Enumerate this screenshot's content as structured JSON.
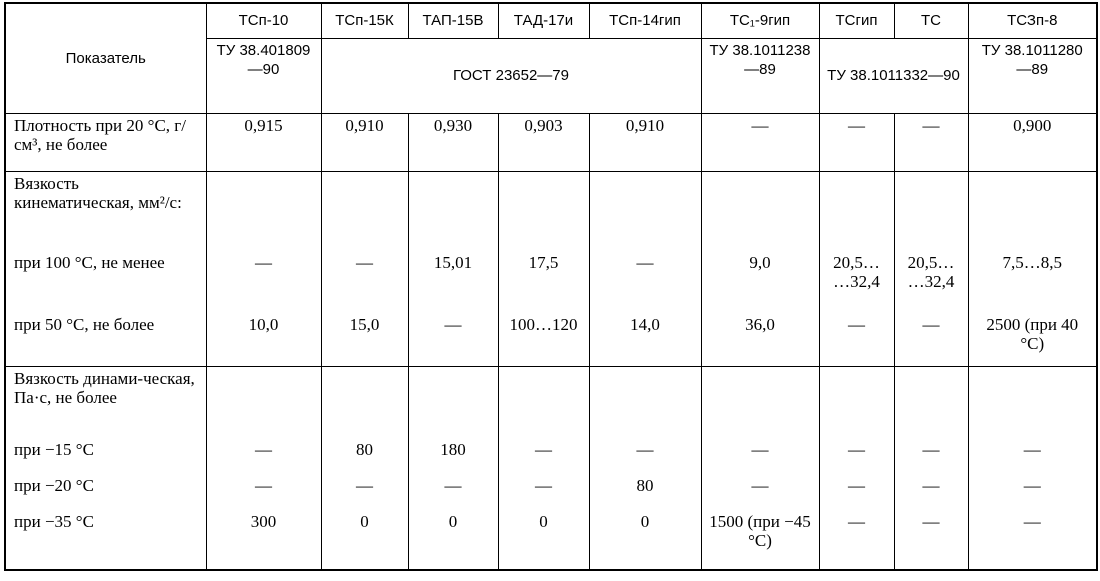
{
  "table": {
    "header": {
      "indicator": "Показатель",
      "grades": [
        "ТСп-10",
        "ТСп-15К",
        "ТАП-15В",
        "ТАД-17и",
        "ТСп-14гип",
        "ТС₁-9гип",
        "ТСгип",
        "ТС",
        "ТСЗп-8"
      ],
      "standards": [
        "ТУ 38.401809—90",
        "ГОСТ 23652—79",
        "ТУ 38.1011238—89",
        "ТУ 38.1011332—90",
        "ТУ 38.1011280—89"
      ]
    },
    "density": {
      "label": "Плотность при 20 °С, г/см³, не более",
      "values": [
        "0,915",
        "0,910",
        "0,930",
        "0,903",
        "0,910",
        "—",
        "—",
        "—",
        "0,900"
      ]
    },
    "kinematic": {
      "title": "Вязкость кинематическая, мм²/с:",
      "rows": [
        {
          "label": "при 100 °С, не менее",
          "values": [
            "—",
            "—",
            "15,01",
            "17,5",
            "—",
            "9,0",
            "20,5… …32,4",
            "20,5… …32,4",
            "7,5…8,5"
          ]
        },
        {
          "label": "при 50 °С, не более",
          "values": [
            "10,0",
            "15,0",
            "—",
            "100…120",
            "14,0",
            "36,0",
            "—",
            "—",
            "2500 (при 40 °С)"
          ]
        }
      ]
    },
    "dynamic": {
      "title": "Вязкость динами-ческая, Па·с, не более",
      "rows": [
        {
          "label": "при −15 °С",
          "values": [
            "—",
            "80",
            "180",
            "—",
            "—",
            "—",
            "—",
            "—",
            "—"
          ]
        },
        {
          "label": "при −20 °С",
          "values": [
            "—",
            "—",
            "—",
            "—",
            "80",
            "—",
            "—",
            "—",
            "—"
          ]
        },
        {
          "label": "при −35 °С",
          "values": [
            "300",
            "0",
            "0",
            "0",
            "0",
            "1500 (при −45 °С)",
            "—",
            "—",
            "—"
          ]
        }
      ]
    }
  }
}
